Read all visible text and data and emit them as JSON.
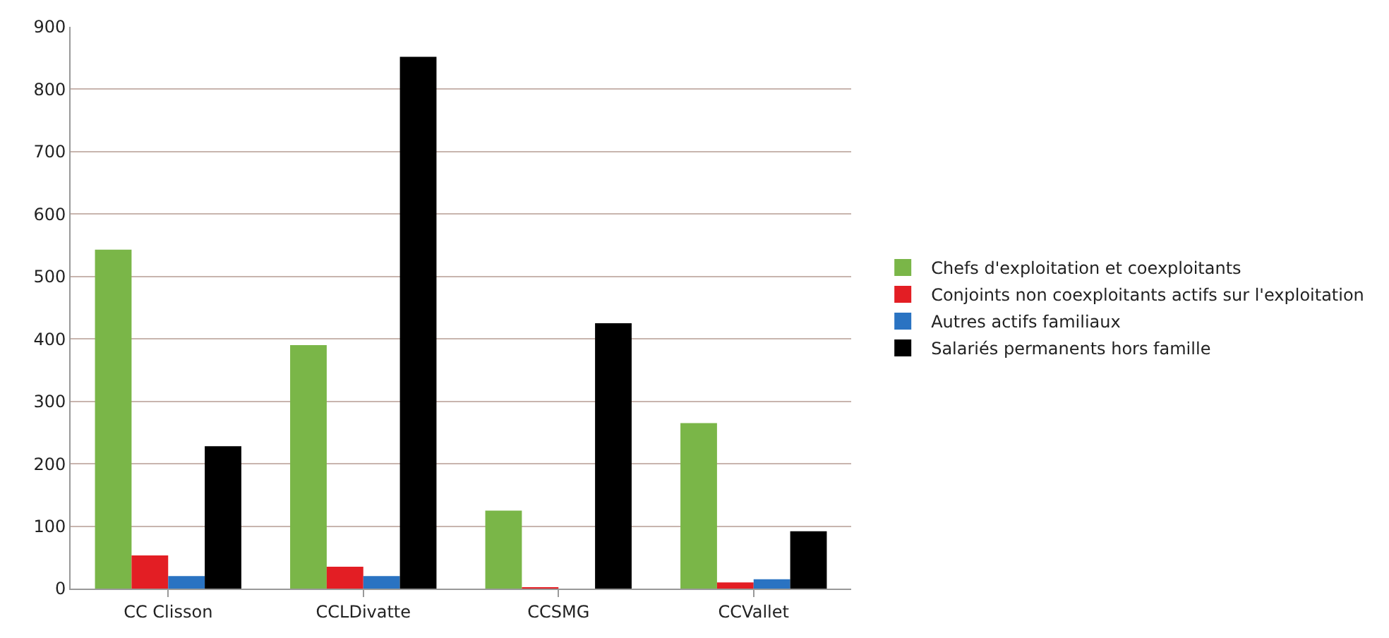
{
  "chart_data": {
    "type": "bar",
    "categories": [
      "CC Clisson",
      "CCLDivatte",
      "CCSMG",
      "CCVallet"
    ],
    "series": [
      {
        "name": "Chefs d'exploitation et coexploitants",
        "color": "#7ab648",
        "values": [
          543,
          390,
          125,
          265
        ]
      },
      {
        "name": "Conjoints non coexploitants actifs sur l'exploitation",
        "color": "#e31e24",
        "values": [
          53,
          35,
          2,
          10
        ]
      },
      {
        "name": "Autres actifs familiaux",
        "color": "#2a73c2",
        "values": [
          20,
          20,
          0,
          15
        ]
      },
      {
        "name": "Salariés permanents hors famille",
        "color": "#000000",
        "values": [
          228,
          852,
          425,
          92
        ]
      }
    ],
    "ylim": [
      0,
      900
    ],
    "yticks": [
      0,
      100,
      200,
      300,
      400,
      500,
      600,
      700,
      800,
      900
    ],
    "grid": "y",
    "legend": "right"
  }
}
